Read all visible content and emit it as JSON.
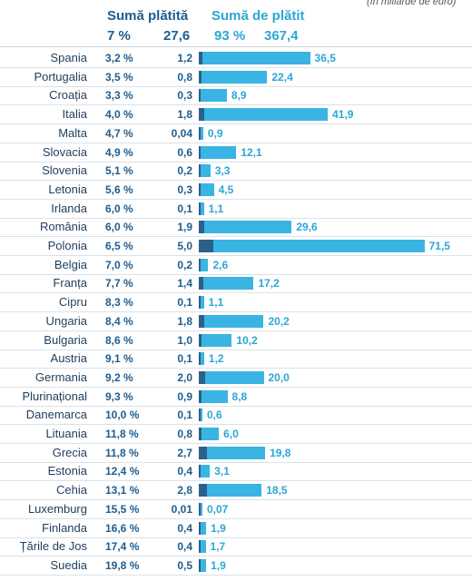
{
  "chart_data": {
    "type": "bar",
    "orientation": "horizontal",
    "unit_note": "(în miliarde de euro)",
    "header": {
      "paid_label": "Sumă plătită",
      "paid_pct": "7 %",
      "paid_total": "27,6",
      "due_label": "Sumă de plătit",
      "due_pct": "93 %",
      "due_total": "367,4"
    },
    "colors": {
      "paid": "#2b5f8c",
      "due": "#3ab4e2",
      "header_dark": "#1f5d8e",
      "header_cyan": "#2aa7d6"
    },
    "rows": [
      {
        "country": "Spania",
        "pct": "3,2 %",
        "paid": "1,2",
        "due": "36,5",
        "paid_value": 1.2,
        "due_value": 36.5
      },
      {
        "country": "Portugalia",
        "pct": "3,5 %",
        "paid": "0,8",
        "due": "22,4",
        "paid_value": 0.8,
        "due_value": 22.4
      },
      {
        "country": "Croația",
        "pct": "3,3 %",
        "paid": "0,3",
        "due": "8,9",
        "paid_value": 0.3,
        "due_value": 8.9
      },
      {
        "country": "Italia",
        "pct": "4,0 %",
        "paid": "1,8",
        "due": "41,9",
        "paid_value": 1.8,
        "due_value": 41.9
      },
      {
        "country": "Malta",
        "pct": "4,7 %",
        "paid": "0,04",
        "due": "0,9",
        "paid_value": 0.04,
        "due_value": 0.9
      },
      {
        "country": "Slovacia",
        "pct": "4,9 %",
        "paid": "0,6",
        "due": "12,1",
        "paid_value": 0.6,
        "due_value": 12.1
      },
      {
        "country": "Slovenia",
        "pct": "5,1 %",
        "paid": "0,2",
        "due": "3,3",
        "paid_value": 0.2,
        "due_value": 3.3
      },
      {
        "country": "Letonia",
        "pct": "5,6 %",
        "paid": "0,3",
        "due": "4,5",
        "paid_value": 0.3,
        "due_value": 4.5
      },
      {
        "country": "Irlanda",
        "pct": "6,0 %",
        "paid": "0,1",
        "due": "1,1",
        "paid_value": 0.1,
        "due_value": 1.1
      },
      {
        "country": "România",
        "pct": "6,0 %",
        "paid": "1,9",
        "due": "29,6",
        "paid_value": 1.9,
        "due_value": 29.6
      },
      {
        "country": "Polonia",
        "pct": "6,5 %",
        "paid": "5,0",
        "due": "71,5",
        "paid_value": 5.0,
        "due_value": 71.5
      },
      {
        "country": "Belgia",
        "pct": "7,0 %",
        "paid": "0,2",
        "due": "2,6",
        "paid_value": 0.2,
        "due_value": 2.6
      },
      {
        "country": "Franța",
        "pct": "7,7 %",
        "paid": "1,4",
        "due": "17,2",
        "paid_value": 1.4,
        "due_value": 17.2
      },
      {
        "country": "Cipru",
        "pct": "8,3 %",
        "paid": "0,1",
        "due": "1,1",
        "paid_value": 0.1,
        "due_value": 1.1
      },
      {
        "country": "Ungaria",
        "pct": "8,4 %",
        "paid": "1,8",
        "due": "20,2",
        "paid_value": 1.8,
        "due_value": 20.2
      },
      {
        "country": "Bulgaria",
        "pct": "8,6 %",
        "paid": "1,0",
        "due": "10,2",
        "paid_value": 1.0,
        "due_value": 10.2
      },
      {
        "country": "Austria",
        "pct": "9,1 %",
        "paid": "0,1",
        "due": "1,2",
        "paid_value": 0.1,
        "due_value": 1.2
      },
      {
        "country": "Germania",
        "pct": "9,2 %",
        "paid": "2,0",
        "due": "20,0",
        "paid_value": 2.0,
        "due_value": 20.0
      },
      {
        "country": "Plurinațional",
        "pct": "9,3 %",
        "paid": "0,9",
        "due": "8,8",
        "paid_value": 0.9,
        "due_value": 8.8
      },
      {
        "country": "Danemarca",
        "pct": "10,0 %",
        "paid": "0,1",
        "due": "0,6",
        "paid_value": 0.1,
        "due_value": 0.6
      },
      {
        "country": "Lituania",
        "pct": "11,8 %",
        "paid": "0,8",
        "due": "6,0",
        "paid_value": 0.8,
        "due_value": 6.0
      },
      {
        "country": "Grecia",
        "pct": "11,8 %",
        "paid": "2,7",
        "due": "19,8",
        "paid_value": 2.7,
        "due_value": 19.8
      },
      {
        "country": "Estonia",
        "pct": "12,4 %",
        "paid": "0,4",
        "due": "3,1",
        "paid_value": 0.4,
        "due_value": 3.1
      },
      {
        "country": "Cehia",
        "pct": "13,1 %",
        "paid": "2,8",
        "due": "18,5",
        "paid_value": 2.8,
        "due_value": 18.5
      },
      {
        "country": "Luxemburg",
        "pct": "15,5 %",
        "paid": "0,01",
        "due": "0,07",
        "paid_value": 0.01,
        "due_value": 0.07
      },
      {
        "country": "Finlanda",
        "pct": "16,6 %",
        "paid": "0,4",
        "due": "1,9",
        "paid_value": 0.4,
        "due_value": 1.9
      },
      {
        "country": "Țările de Jos",
        "pct": "17,4 %",
        "paid": "0,4",
        "due": "1,7",
        "paid_value": 0.4,
        "due_value": 1.7
      },
      {
        "country": "Suedia",
        "pct": "19,8 %",
        "paid": "0,5",
        "due": "1,9",
        "paid_value": 0.5,
        "due_value": 1.9
      }
    ]
  }
}
